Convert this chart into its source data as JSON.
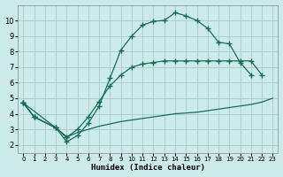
{
  "xlabel": "Humidex (Indice chaleur)",
  "bg_color": "#cceaea",
  "grid_color": "#aacccc",
  "line_color": "#1a6b5a",
  "xlim": [
    -0.5,
    23.5
  ],
  "ylim": [
    1.5,
    11.0
  ],
  "xticks": [
    0,
    1,
    2,
    3,
    4,
    5,
    6,
    7,
    8,
    9,
    10,
    11,
    12,
    13,
    14,
    15,
    16,
    17,
    18,
    19,
    20,
    21,
    22,
    23
  ],
  "yticks": [
    2,
    3,
    4,
    5,
    6,
    7,
    8,
    9,
    10
  ],
  "curve_upper": {
    "x": [
      0,
      1,
      3,
      4,
      5,
      6,
      7,
      8,
      9,
      10,
      11,
      12,
      13,
      14,
      15,
      16,
      17,
      18,
      19,
      20,
      21
    ],
    "y": [
      4.7,
      3.8,
      3.1,
      2.2,
      2.6,
      3.4,
      4.5,
      6.3,
      8.1,
      9.0,
      9.7,
      9.95,
      10.0,
      10.5,
      10.3,
      10.0,
      9.5,
      8.6,
      8.5,
      7.3,
      6.5
    ]
  },
  "curve_mid": {
    "x": [
      0,
      1,
      3,
      4,
      5,
      6,
      7,
      8,
      9,
      10,
      11,
      12,
      13,
      14,
      15,
      16,
      17,
      18,
      19,
      20,
      21,
      22
    ],
    "y": [
      4.7,
      3.8,
      3.1,
      2.5,
      3.0,
      3.8,
      4.8,
      5.8,
      6.5,
      7.0,
      7.2,
      7.3,
      7.4,
      7.4,
      7.4,
      7.4,
      7.4,
      7.4,
      7.4,
      7.4,
      7.4,
      6.5
    ]
  },
  "curve_bottom": {
    "x": [
      0,
      3,
      4,
      5,
      6,
      7,
      8,
      9,
      10,
      11,
      12,
      13,
      14,
      15,
      16,
      17,
      18,
      19,
      20,
      21,
      22,
      23
    ],
    "y": [
      4.7,
      3.1,
      2.5,
      2.8,
      3.0,
      3.2,
      3.35,
      3.5,
      3.6,
      3.7,
      3.8,
      3.9,
      4.0,
      4.05,
      4.1,
      4.2,
      4.3,
      4.4,
      4.5,
      4.6,
      4.75,
      5.0
    ]
  },
  "curve_zigzag": {
    "x": [
      0,
      1,
      3,
      4
    ],
    "y": [
      4.7,
      3.8,
      3.1,
      2.5
    ]
  }
}
